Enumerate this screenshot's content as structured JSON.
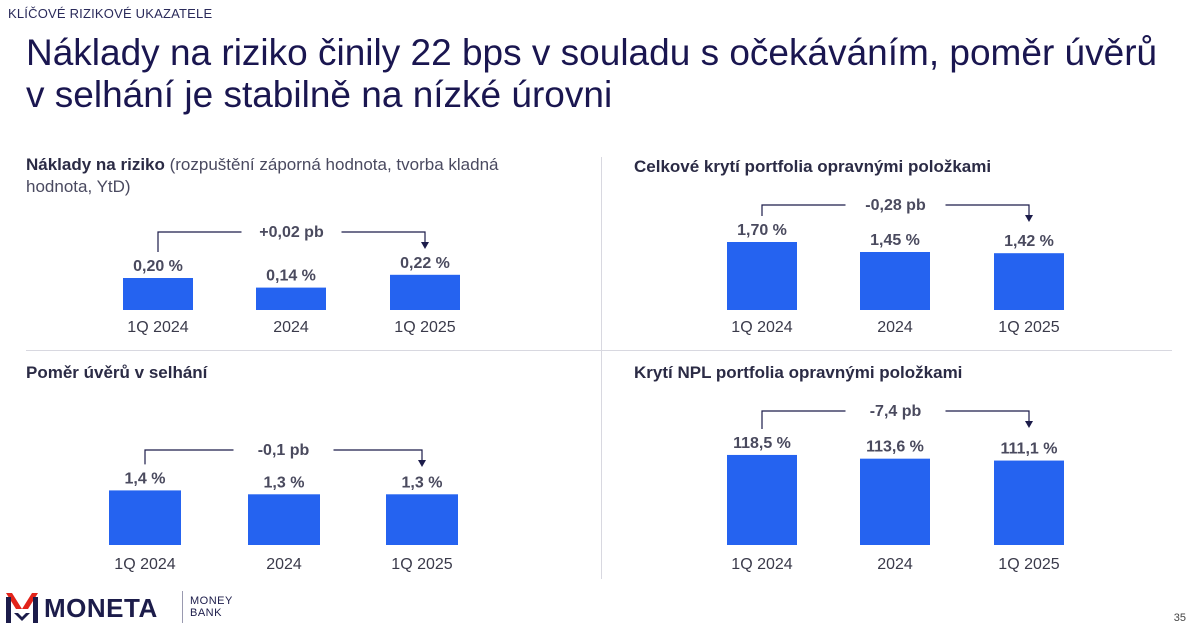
{
  "header": {
    "overline": "KLÍČOVÉ RIZIKOVÉ UKAZATELE",
    "headline": "Náklady na riziko činily 22 bps v souladu s očekáváním, poměr úvěrů v selhání je stabilně na nízké úrovni"
  },
  "panels": {
    "cost_of_risk": {
      "title_bold": "Náklady na riziko",
      "title_rest": " (rozpuštění záporná hodnota, tvorba kladná hodnota, YtD)"
    },
    "total_coverage": {
      "title_bold": "Celkové krytí portfolia opravnými položkami"
    },
    "npl_ratio": {
      "title_bold": "Poměr úvěrů v selhání"
    },
    "npl_coverage": {
      "title_bold": "Krytí NPL portfolia opravnými položkami"
    }
  },
  "chart_data": [
    {
      "id": "cost_of_risk",
      "type": "bar",
      "categories": [
        "1Q 2024",
        "2024",
        "1Q 2025"
      ],
      "values": [
        0.2,
        0.14,
        0.22
      ],
      "value_labels": [
        "0,20 %",
        "0,14 %",
        "0,22 %"
      ],
      "change_label": "+0,02 pb",
      "bar_color": "#2563f0"
    },
    {
      "id": "total_coverage",
      "type": "bar",
      "categories": [
        "1Q 2024",
        "2024",
        "1Q 2025"
      ],
      "values": [
        1.7,
        1.45,
        1.42
      ],
      "value_labels": [
        "1,70 %",
        "1,45 %",
        "1,42 %"
      ],
      "change_label": "-0,28 pb",
      "bar_color": "#2563f0"
    },
    {
      "id": "npl_ratio",
      "type": "bar",
      "categories": [
        "1Q 2024",
        "2024",
        "1Q 2025"
      ],
      "values": [
        1.4,
        1.3,
        1.3
      ],
      "value_labels": [
        "1,4 %",
        "1,3 %",
        "1,3 %"
      ],
      "change_label": "-0,1 pb",
      "bar_color": "#2563f0"
    },
    {
      "id": "npl_coverage",
      "type": "bar",
      "categories": [
        "1Q 2024",
        "2024",
        "1Q 2025"
      ],
      "values": [
        118.5,
        113.6,
        111.1
      ],
      "value_labels": [
        "118,5 %",
        "113,6 %",
        "111,1 %"
      ],
      "change_label": "-7,4 pb",
      "bar_color": "#2563f0"
    }
  ],
  "footer": {
    "logo_word": "MONETA",
    "logo_sub": "MONEY BANK",
    "page_number": "35"
  }
}
